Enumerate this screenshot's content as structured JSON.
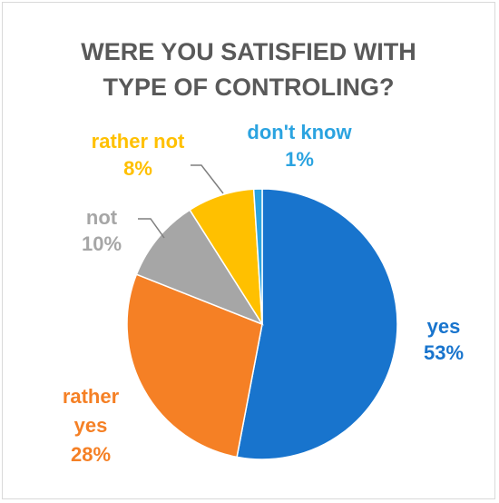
{
  "chart_data": {
    "type": "pie",
    "title_lines": [
      "WERE YOU SATISFIED WITH",
      "TYPE OF CONTROLING?"
    ],
    "slices": [
      {
        "label_lines": [
          "yes"
        ],
        "value": 53,
        "value_label": "53%",
        "color": "#1874cd"
      },
      {
        "label_lines": [
          "rather",
          "yes"
        ],
        "value": 28,
        "value_label": "28%",
        "color": "#f58025"
      },
      {
        "label_lines": [
          "not"
        ],
        "value": 10,
        "value_label": "10%",
        "color": "#a6a6a6"
      },
      {
        "label_lines": [
          "rather not"
        ],
        "value": 8,
        "value_label": "8%",
        "color": "#ffc000"
      },
      {
        "label_lines": [
          "don't know"
        ],
        "value": 1,
        "value_label": "1%",
        "color": "#2ba3e0"
      }
    ]
  }
}
